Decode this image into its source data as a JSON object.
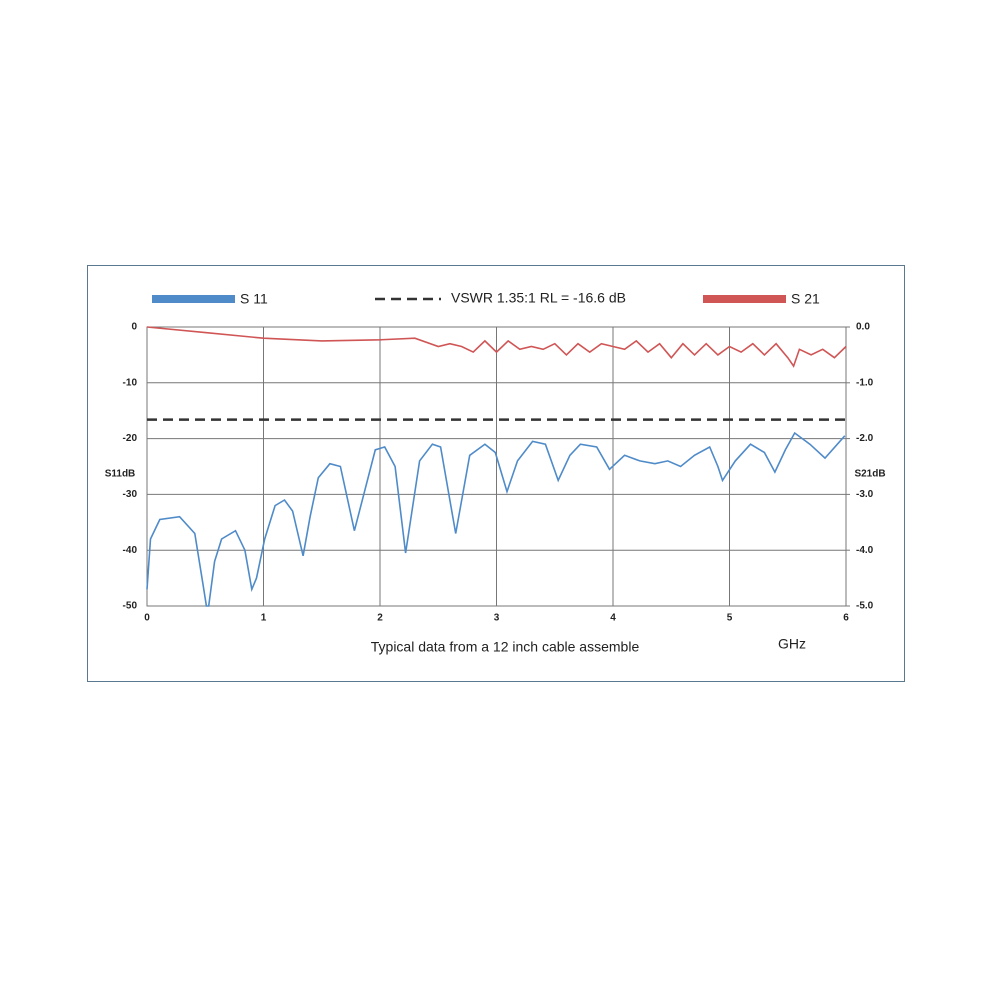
{
  "chart_data": {
    "type": "line",
    "caption": "Typical data from a 12 inch cable assemble",
    "x_label": "GHz",
    "y_label": "S11dB",
    "y2_label": "S21dB",
    "xlim": [
      0,
      6
    ],
    "xticks": [
      0,
      1,
      2,
      3,
      4,
      5,
      6
    ],
    "ylim": [
      -50,
      0
    ],
    "yticks": [
      0,
      -10,
      -20,
      -30,
      -40,
      -50
    ],
    "y2lim": [
      -5,
      0
    ],
    "y2ticks": [
      {
        "value": 0,
        "label": "0.0"
      },
      {
        "value": -1,
        "label": "-1.0"
      },
      {
        "value": -2,
        "label": "-2.0"
      },
      {
        "value": -3,
        "label": "-3.0"
      },
      {
        "value": -4,
        "label": "-4.0"
      },
      {
        "value": -5,
        "label": "-5.0"
      }
    ],
    "grid": true,
    "reference_line": {
      "value": -16.6,
      "label": "VSWR 1.35:1 RL = -16.6 dB",
      "color": "#333333"
    },
    "series": [
      {
        "name": "S 11",
        "color": "#4f8bc9",
        "axis": "y",
        "x": [
          0,
          0.03,
          0.11,
          0.28,
          0.41,
          0.48,
          0.51,
          0.53,
          0.58,
          0.64,
          0.76,
          0.84,
          0.9,
          0.94,
          1.01,
          1.1,
          1.18,
          1.25,
          1.34,
          1.4,
          1.47,
          1.57,
          1.66,
          1.78,
          1.96,
          2.04,
          2.13,
          2.22,
          2.34,
          2.45,
          2.52,
          2.65,
          2.77,
          2.9,
          2.99,
          3.09,
          3.18,
          3.31,
          3.42,
          3.53,
          3.63,
          3.72,
          3.86,
          3.97,
          4.1,
          4.23,
          4.36,
          4.47,
          4.58,
          4.7,
          4.83,
          4.9,
          4.94,
          5.05,
          5.18,
          5.3,
          5.39,
          5.48,
          5.56,
          5.69,
          5.82,
          5.99
        ],
        "values": [
          -47,
          -38,
          -34.5,
          -34,
          -37,
          -46,
          -50,
          -50,
          -42,
          -38,
          -36.5,
          -40,
          -47,
          -45,
          -38,
          -32,
          -31,
          -33,
          -41,
          -34,
          -27,
          -24.5,
          -25,
          -36.5,
          -22,
          -21.5,
          -25,
          -40.5,
          -24,
          -21,
          -21.5,
          -37,
          -23,
          -21,
          -22.5,
          -29.5,
          -24,
          -20.5,
          -21,
          -27.5,
          -23,
          -21,
          -21.5,
          -25.5,
          -23,
          -24,
          -24.5,
          -24,
          -25,
          -23,
          -21.5,
          -25,
          -27.5,
          -24,
          -21,
          -22.5,
          -26,
          -22,
          -19,
          -21,
          -23.5,
          -19.5
        ]
      },
      {
        "name": "S 21",
        "color": "#d05555",
        "axis": "y2",
        "x": [
          0,
          0.5,
          1,
          1.5,
          2,
          2.3,
          2.5,
          2.6,
          2.7,
          2.8,
          2.9,
          3.0,
          3.1,
          3.2,
          3.3,
          3.4,
          3.5,
          3.6,
          3.7,
          3.8,
          3.9,
          4.0,
          4.1,
          4.2,
          4.3,
          4.4,
          4.5,
          4.6,
          4.7,
          4.8,
          4.9,
          5.0,
          5.1,
          5.2,
          5.3,
          5.4,
          5.5,
          5.55,
          5.6,
          5.7,
          5.8,
          5.9,
          6.0
        ],
        "values": [
          0,
          -0.1,
          -0.2,
          -0.25,
          -0.23,
          -0.2,
          -0.35,
          -0.3,
          -0.35,
          -0.45,
          -0.25,
          -0.45,
          -0.25,
          -0.4,
          -0.35,
          -0.4,
          -0.3,
          -0.5,
          -0.3,
          -0.45,
          -0.3,
          -0.35,
          -0.4,
          -0.25,
          -0.45,
          -0.3,
          -0.55,
          -0.3,
          -0.5,
          -0.3,
          -0.5,
          -0.35,
          -0.45,
          -0.3,
          -0.5,
          -0.3,
          -0.55,
          -0.7,
          -0.4,
          -0.5,
          -0.4,
          -0.55,
          -0.35
        ]
      }
    ]
  }
}
